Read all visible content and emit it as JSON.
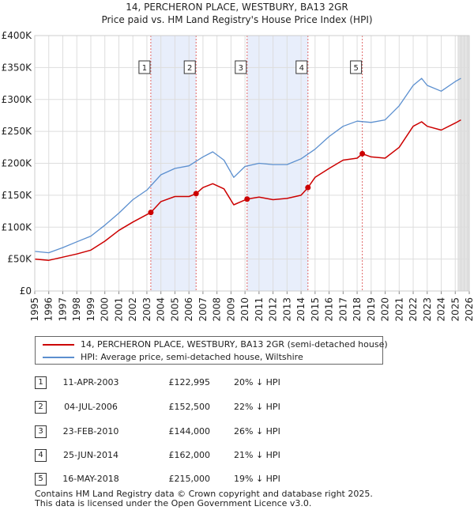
{
  "chart_data": {
    "type": "line",
    "title": "14, PERCHERON PLACE, WESTBURY, BA13 2GR",
    "subtitle": "Price paid vs. HM Land Registry's House Price Index (HPI)",
    "xlabel": "",
    "ylabel": "",
    "xlim": [
      1995,
      2026
    ],
    "ylim": [
      0,
      400000
    ],
    "x_ticks": [
      "1995",
      "1996",
      "1997",
      "1998",
      "1999",
      "2000",
      "2001",
      "2002",
      "2003",
      "2004",
      "2005",
      "2006",
      "2007",
      "2008",
      "2009",
      "2010",
      "2011",
      "2012",
      "2013",
      "2014",
      "2015",
      "2016",
      "2017",
      "2018",
      "2019",
      "2020",
      "2021",
      "2022",
      "2023",
      "2024",
      "2025",
      "2026"
    ],
    "y_ticks": [
      "£0",
      "£50K",
      "£100K",
      "£150K",
      "£200K",
      "£250K",
      "£300K",
      "£350K",
      "£400K"
    ],
    "grid": true,
    "forecast_from": 2025.2,
    "series": [
      {
        "name": "14, PERCHERON PLACE, WESTBURY, BA13 2GR (semi-detached house)",
        "color": "#cc0000",
        "x": [
          1995,
          1996,
          1997,
          1998,
          1999,
          2000,
          2001,
          2002,
          2003.28,
          2004,
          2005,
          2006,
          2006.51,
          2007,
          2007.7,
          2008.5,
          2009.2,
          2010.15,
          2011,
          2012,
          2013,
          2014,
          2014.49,
          2015,
          2016,
          2017,
          2018,
          2018.37,
          2019,
          2020,
          2021,
          2022,
          2022.6,
          2023,
          2024,
          2025,
          2025.4
        ],
        "y": [
          50000,
          48000,
          53000,
          58000,
          64000,
          78000,
          95000,
          108000,
          122995,
          140000,
          148000,
          148000,
          152500,
          162000,
          168000,
          160000,
          135000,
          144000,
          147000,
          143000,
          145000,
          150000,
          162000,
          178000,
          192000,
          205000,
          208000,
          215000,
          210000,
          208000,
          225000,
          258000,
          265000,
          258000,
          252000,
          263000,
          268000
        ]
      },
      {
        "name": "HPI: Average price, semi-detached house, Wiltshire",
        "color": "#5b8fcf",
        "x": [
          1995,
          1996,
          1997,
          1998,
          1999,
          2000,
          2001,
          2002,
          2003,
          2004,
          2005,
          2006,
          2007,
          2007.7,
          2008.5,
          2009.2,
          2010,
          2011,
          2012,
          2013,
          2014,
          2015,
          2016,
          2017,
          2018,
          2019,
          2020,
          2021,
          2022,
          2022.6,
          2023,
          2024,
          2025,
          2025.4
        ],
        "y": [
          62000,
          60000,
          68000,
          77000,
          86000,
          103000,
          122000,
          143000,
          158000,
          182000,
          192000,
          196000,
          210000,
          218000,
          205000,
          178000,
          195000,
          200000,
          198000,
          198000,
          207000,
          222000,
          242000,
          258000,
          266000,
          264000,
          268000,
          290000,
          322000,
          333000,
          322000,
          313000,
          328000,
          333000
        ]
      }
    ],
    "transactions": [
      {
        "id": "1",
        "x": 2003.28,
        "price": 122995
      },
      {
        "id": "2",
        "x": 2006.51,
        "price": 152500
      },
      {
        "id": "3",
        "x": 2010.15,
        "price": 144000
      },
      {
        "id": "4",
        "x": 2014.49,
        "price": 162000
      },
      {
        "id": "5",
        "x": 2018.37,
        "price": 215000
      }
    ],
    "shaded_ranges": [
      [
        2003.28,
        2006.51
      ],
      [
        2010.15,
        2014.49
      ],
      [
        2025.2,
        2026
      ]
    ]
  },
  "legend": {
    "red_label": "14, PERCHERON PLACE, WESTBURY, BA13 2GR (semi-detached house)",
    "blue_label": "HPI: Average price, semi-detached house, Wiltshire"
  },
  "table": [
    {
      "num": "1",
      "date": "11-APR-2003",
      "price": "£122,995",
      "hpi": "20% ↓ HPI"
    },
    {
      "num": "2",
      "date": "04-JUL-2006",
      "price": "£152,500",
      "hpi": "22% ↓ HPI"
    },
    {
      "num": "3",
      "date": "23-FEB-2010",
      "price": "£144,000",
      "hpi": "26% ↓ HPI"
    },
    {
      "num": "4",
      "date": "25-JUN-2014",
      "price": "£162,000",
      "hpi": "21% ↓ HPI"
    },
    {
      "num": "5",
      "date": "16-MAY-2018",
      "price": "£215,000",
      "hpi": "19% ↓ HPI"
    }
  ],
  "footer": {
    "line1": "Contains HM Land Registry data © Crown copyright and database right 2025.",
    "line2": "This data is licensed under the Open Government Licence v3.0."
  }
}
